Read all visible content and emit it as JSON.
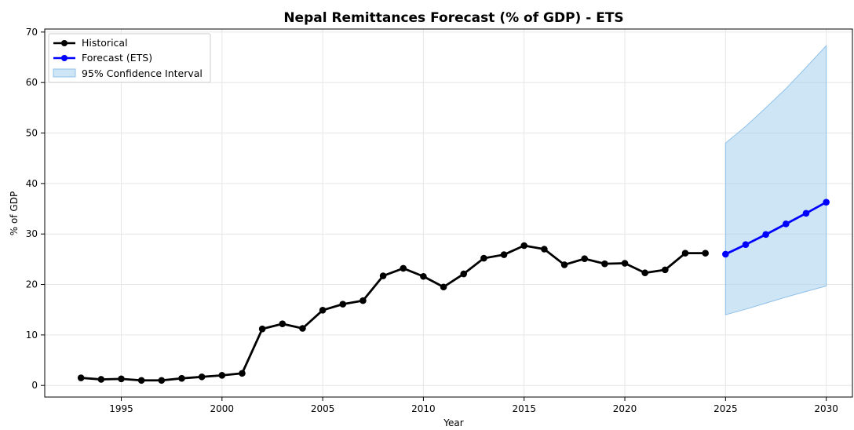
{
  "chart_data": {
    "type": "line",
    "title": "Nepal Remittances Forecast (% of GDP) - ETS",
    "xlabel": "Year",
    "ylabel": "% of GDP",
    "xlim": [
      1991.2,
      2031.3
    ],
    "ylim": [
      -2.3,
      70.6
    ],
    "xticks": [
      1995,
      2000,
      2005,
      2010,
      2015,
      2020,
      2025,
      2030
    ],
    "yticks": [
      0,
      10,
      20,
      30,
      40,
      50,
      60,
      70
    ],
    "grid": true,
    "legend_position": "top-left",
    "series": [
      {
        "name": "Historical",
        "color": "#000000",
        "x": [
          1993,
          1994,
          1995,
          1996,
          1997,
          1998,
          1999,
          2000,
          2001,
          2002,
          2003,
          2004,
          2005,
          2006,
          2007,
          2008,
          2009,
          2010,
          2011,
          2012,
          2013,
          2014,
          2015,
          2016,
          2017,
          2018,
          2019,
          2020,
          2021,
          2022,
          2023,
          2024
        ],
        "y": [
          1.5,
          1.2,
          1.3,
          1.0,
          1.0,
          1.4,
          1.7,
          2.0,
          2.4,
          11.2,
          12.2,
          11.3,
          14.9,
          16.1,
          16.8,
          21.7,
          23.2,
          21.6,
          19.5,
          22.1,
          25.2,
          25.9,
          27.7,
          27.0,
          23.9,
          25.1,
          24.1,
          24.2,
          22.3,
          22.9,
          26.2,
          26.2
        ]
      },
      {
        "name": "Forecast (ETS)",
        "color": "#0000ff",
        "x": [
          2025,
          2026,
          2027,
          2028,
          2029,
          2030
        ],
        "y": [
          26.0,
          27.9,
          29.9,
          32.0,
          34.1,
          36.3
        ]
      }
    ],
    "confidence_interval": {
      "name": "95% Confidence Interval",
      "color": "#a6cfef",
      "x": [
        2025,
        2026,
        2027,
        2028,
        2029,
        2030
      ],
      "lower": [
        14.0,
        15.1,
        16.3,
        17.5,
        18.6,
        19.7
      ],
      "upper": [
        48.0,
        51.3,
        55.0,
        58.8,
        63.0,
        67.3
      ]
    }
  }
}
